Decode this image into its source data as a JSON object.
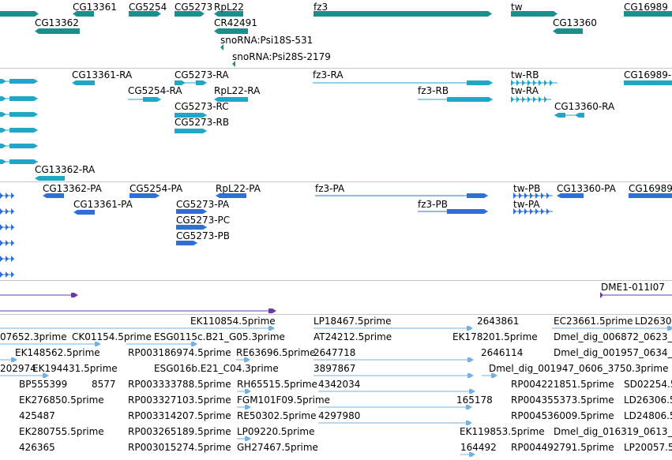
{
  "colors": {
    "gene": "#1c8f8c",
    "transcript": "#21a6c8",
    "cds": "#2f6fd8",
    "ttrack": "#6a3aa0",
    "est": "#76b2e0",
    "divider": "#c8c8c8"
  },
  "tracks": {
    "genes": {
      "labels": [
        "CG13361",
        "CG5254",
        "CG5273",
        "RpL22",
        "fz3",
        "tw",
        "CG16989",
        "CG13362",
        "CR42491",
        "CG13360",
        "snoRNA:Psi18S-531",
        "snoRNA:Psi28S-2179"
      ]
    },
    "transcripts": {
      "labels": [
        "CG13361-RA",
        "CG5273-RA",
        "fz3-RA",
        "tw-RB",
        "CG16989-",
        "CG5254-RA",
        "RpL22-RA",
        "fz3-RB",
        "tw-RA",
        "CG5273-RC",
        "CG13360-RA",
        "CG5273-RB",
        "CG13362-RA"
      ]
    },
    "proteins": {
      "labels": [
        "CG13362-PA",
        "CG5254-PA",
        "RpL22-PA",
        "fz3-PA",
        "tw-PB",
        "CG13360-PA",
        "CG16989",
        "CG13361-PA",
        "CG5273-PA",
        "fz3-PB",
        "tw-PA",
        "CG5273-PC",
        "CG5273-PB"
      ]
    },
    "clones": {
      "labels": [
        "DME1-011I07"
      ]
    },
    "ests": {
      "labels": [
        "EK110854.5prime",
        "LP18467.5prime",
        "2643861",
        "EC23661.5prime",
        "LD2630(",
        "07652.3prime",
        "CK01154.5prime",
        "ESG0115c.B21_G05.3prime",
        "AT24212.5prime",
        "EK178201.5prime",
        "Dmel_dig_006872_0623_",
        "EK148562.5prime",
        "RP003186974.5prime",
        "RE63696.5prime",
        "2647718",
        "2646114",
        "Dmel_dig_001957_0634_",
        "202974",
        "EK194431.5prime",
        "ESG016b.E21_C04.3prime",
        "3897867",
        "Dmel_dig_001947_0606_3750.3prime",
        "BP555399",
        "8577",
        "RP003333788.5prime",
        "RH65515.5prime",
        "4342034",
        "RP004221851.5prime",
        "SD02254.5",
        "EK276850.5prime",
        "RP003327103.5prime",
        "FGM101F09.5prime",
        "165178",
        "RP004355373.5prime",
        "LD26306.5",
        "425487",
        "RP003314207.5prime",
        "RE50302.5prime",
        "4297980",
        "RP004536009.5prime",
        "LD24806.5",
        "EK280755.5prime",
        "RP003265189.5prime",
        "LP09220.5prime",
        "EK119853.5prime",
        "Dmel_dig_016319_0613_",
        "426365",
        "RP003015274.5prime",
        "GH27467.5prime",
        "164492",
        "RP004492791.5prime",
        "LP20057.5"
      ]
    }
  }
}
